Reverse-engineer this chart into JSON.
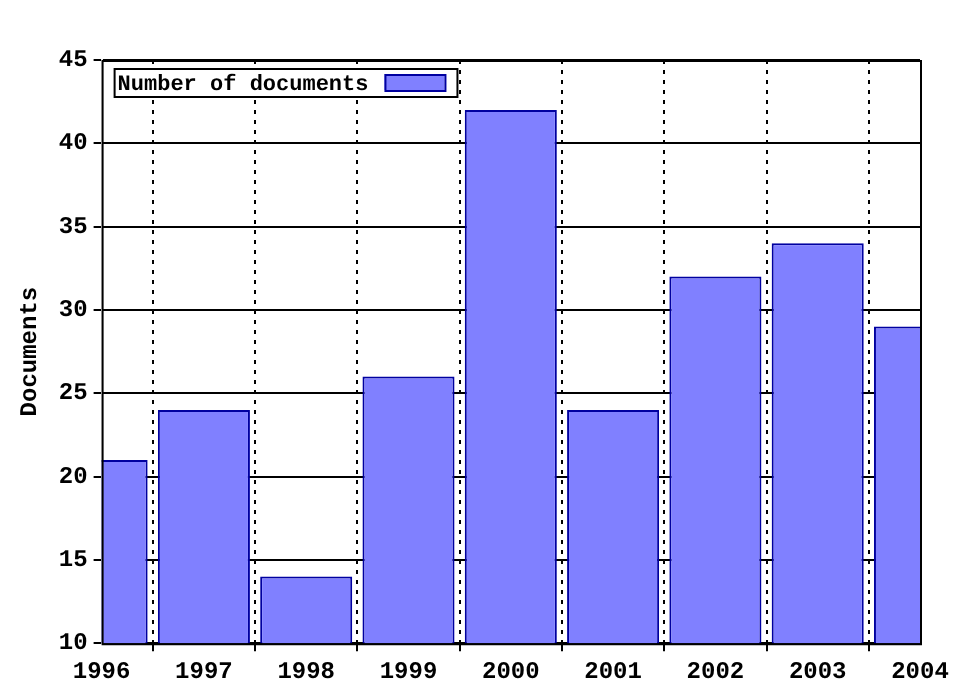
{
  "chart_data": {
    "type": "bar",
    "ylabel": "Documents",
    "x": [
      1996,
      1997,
      1998,
      1999,
      2000,
      2001,
      2002,
      2003,
      2004
    ],
    "series": [
      {
        "name": "Number of documents",
        "color": "#8080ff",
        "values": [
          21,
          24,
          14,
          26,
          42,
          24,
          32,
          34,
          29
        ]
      }
    ],
    "xlim": [
      1996,
      2004
    ],
    "xticks": [
      1996,
      1997,
      1998,
      1999,
      2000,
      2001,
      2002,
      2003,
      2004
    ],
    "ylim": [
      10,
      45
    ],
    "yticks": [
      10,
      15,
      20,
      25,
      30,
      35,
      40,
      45
    ],
    "grid": true,
    "legend": "top left"
  }
}
